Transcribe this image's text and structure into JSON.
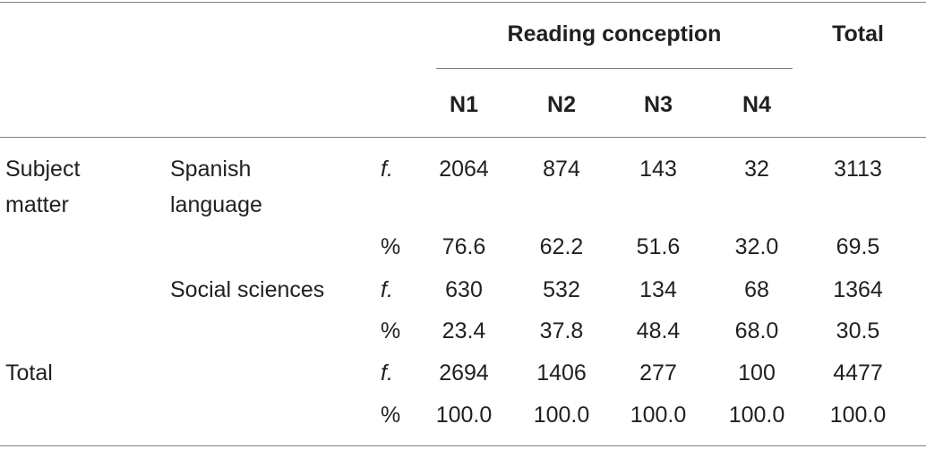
{
  "header": {
    "group_label": "Reading conception",
    "total_label": "Total",
    "columns": [
      "N1",
      "N2",
      "N3",
      "N4"
    ]
  },
  "rows": [
    {
      "group": "Subject matter",
      "category": "Spanish language",
      "measure": "f.",
      "values": [
        "2064",
        "874",
        "143",
        "32"
      ],
      "total": "3113"
    },
    {
      "group": "",
      "category": "",
      "measure": "%",
      "values": [
        "76.6",
        "62.2",
        "51.6",
        "32.0"
      ],
      "total": "69.5"
    },
    {
      "group": "",
      "category": "Social sciences",
      "measure": "f.",
      "values": [
        "630",
        "532",
        "134",
        "68"
      ],
      "total": "1364"
    },
    {
      "group": "",
      "category": "",
      "measure": "%",
      "values": [
        "23.4",
        "37.8",
        "48.4",
        "68.0"
      ],
      "total": "30.5"
    },
    {
      "group": "Total",
      "category": "",
      "measure": "f.",
      "values": [
        "2694",
        "1406",
        "277",
        "100"
      ],
      "total": "4477"
    },
    {
      "group": "",
      "category": "",
      "measure": "%",
      "values": [
        "100.0",
        "100.0",
        "100.0",
        "100.0"
      ],
      "total": "100.0"
    }
  ],
  "group_lines": {
    "subject_matter": [
      "Subject",
      "matter"
    ],
    "spanish": [
      "Spanish",
      "language"
    ]
  }
}
